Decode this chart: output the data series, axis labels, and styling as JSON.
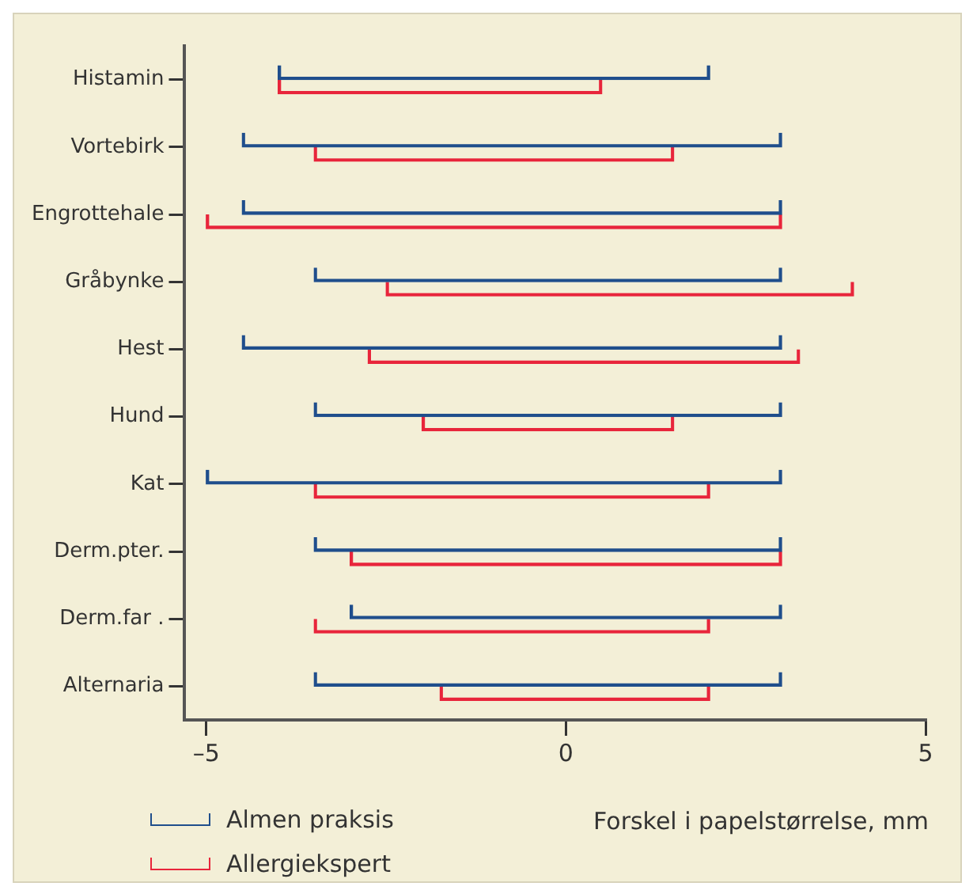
{
  "chart_data": {
    "type": "bar",
    "orientation": "horizontal",
    "xlabel": "Forskel i papelstørrelse, mm",
    "categories": [
      "Histamin",
      "Vortebirk",
      "Engrottehale",
      "Gråbynke",
      "Hest",
      "Hund",
      "Kat",
      "Derm.pter.",
      "Derm.far .",
      "Alternaria"
    ],
    "series": [
      {
        "name": "Almen praksis",
        "color": "#1f4e8c",
        "base": [
          -4,
          -4.5,
          -4.5,
          -3.5,
          -4.5,
          -3.5,
          -5,
          -3.5,
          -3,
          -3.5
        ],
        "values": [
          6,
          7.5,
          7.5,
          6.5,
          7.5,
          6.5,
          8,
          6.5,
          6,
          6.5
        ]
      },
      {
        "name": "Allergiekspert",
        "color": "#e8253b",
        "base": [
          -4,
          -3.5,
          -5,
          -2.5,
          -2.75,
          -2,
          -3.5,
          -3,
          -3.5,
          -1.75
        ],
        "values": [
          4.5,
          5,
          8,
          6.5,
          6,
          3.5,
          5.5,
          6,
          5.5,
          3.75
        ]
      }
    ],
    "xlim": [
      -5.3,
      5
    ],
    "xticks": [
      {
        "value": -5,
        "label": "–5"
      },
      0,
      5
    ],
    "grid": false,
    "legend": "bottom left"
  }
}
